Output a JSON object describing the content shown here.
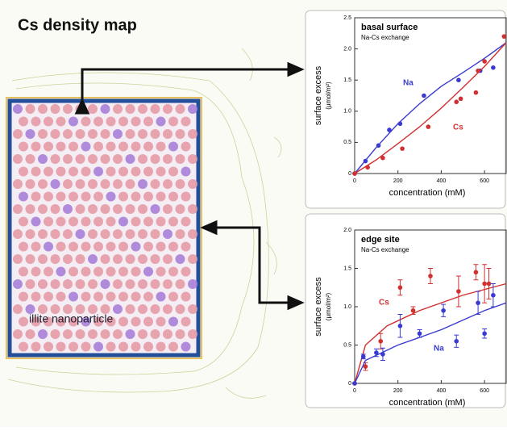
{
  "figure": {
    "title": "Cs density map",
    "label": "illite nanoparticle"
  },
  "chart_data": [
    {
      "type": "scatter",
      "title": "basal surface",
      "subtitle": "Na-Cs exchange",
      "x_label": "concentration (mM)",
      "y_label": [
        "surface excess",
        "(μmol/m²)"
      ],
      "xlim": [
        0,
        700
      ],
      "ylim": [
        0,
        2.5
      ],
      "xticks": [
        0,
        200,
        400,
        600
      ],
      "yticks": [
        0,
        0.5,
        {
          "value": 1,
          "label": "1.0"
        },
        1.5,
        {
          "value": 2,
          "label": "2.0"
        },
        2.5
      ],
      "series": [
        {
          "name": "Na",
          "color": "#3a3ad0",
          "x": [
            0,
            50,
            110,
            160,
            210,
            320,
            480,
            580,
            640
          ],
          "values": [
            0,
            0.2,
            0.45,
            0.7,
            0.8,
            1.25,
            1.5,
            1.65,
            1.7
          ],
          "fit": {
            "x": [
              0,
              100,
              200,
              300,
              400,
              500,
              600,
              700
            ],
            "values": [
              0,
              0.42,
              0.8,
              1.12,
              1.4,
              1.62,
              1.85,
              2.1
            ]
          }
        },
        {
          "name": "Cs",
          "color": "#d03030",
          "x": [
            0,
            60,
            130,
            220,
            340,
            470,
            490,
            560,
            570,
            600,
            690
          ],
          "values": [
            0,
            0.1,
            0.25,
            0.4,
            0.75,
            1.15,
            1.2,
            1.3,
            1.65,
            1.8,
            2.2
          ],
          "fit": {
            "x": [
              0,
              100,
              200,
              300,
              400,
              500,
              600,
              700
            ],
            "values": [
              0,
              0.22,
              0.48,
              0.75,
              1.05,
              1.38,
              1.72,
              2.1
            ]
          }
        }
      ]
    },
    {
      "type": "scatter",
      "title": "edge site",
      "subtitle": "Na-Cs exchange",
      "x_label": "concentration (mM)",
      "y_label": [
        "surface excess",
        "(μmol/m²)"
      ],
      "xlim": [
        0,
        700
      ],
      "ylim": [
        0,
        2
      ],
      "xticks": [
        0,
        200,
        400,
        600
      ],
      "yticks": [
        0,
        0.5,
        {
          "value": 1,
          "label": "1.0"
        },
        1.5,
        {
          "value": 2,
          "label": "2.0"
        }
      ],
      "series": [
        {
          "name": "Cs",
          "color": "#d03030",
          "x": [
            0,
            50,
            120,
            210,
            270,
            350,
            480,
            560,
            600,
            620
          ],
          "values": [
            0,
            0.22,
            0.55,
            1.25,
            0.95,
            1.4,
            1.2,
            1.45,
            1.3,
            1.3
          ],
          "errors": [
            0,
            0.05,
            0.1,
            0.1,
            0.05,
            0.1,
            0.2,
            0.1,
            0.25,
            0.2
          ],
          "fit": {
            "x": [
              0,
              50,
              150,
              300,
              500,
              700
            ],
            "values": [
              0,
              0.5,
              0.75,
              0.95,
              1.15,
              1.3
            ]
          }
        },
        {
          "name": "Na",
          "color": "#3a3ad0",
          "x": [
            0,
            40,
            100,
            130,
            210,
            300,
            410,
            470,
            570,
            600,
            640
          ],
          "values": [
            0,
            0.35,
            0.4,
            0.38,
            0.75,
            0.65,
            0.95,
            0.55,
            1.05,
            0.65,
            1.15
          ],
          "errors": [
            0,
            0.03,
            0.05,
            0.08,
            0.15,
            0.05,
            0.08,
            0.08,
            0.15,
            0.06,
            0.15
          ],
          "fit": {
            "x": [
              0,
              50,
              200,
              400,
              600,
              700
            ],
            "values": [
              0,
              0.3,
              0.5,
              0.7,
              0.95,
              1.05
            ]
          }
        }
      ]
    }
  ]
}
